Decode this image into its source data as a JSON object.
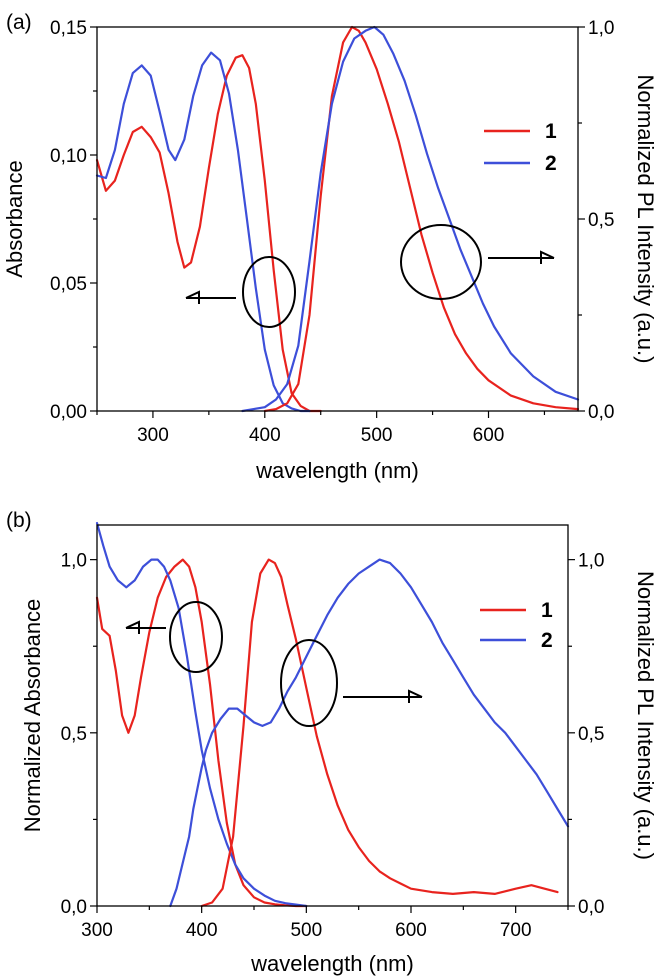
{
  "colors": {
    "series1": "#e8231e",
    "series2": "#3d4fd9",
    "axis": "#000000"
  },
  "chart_data": [
    {
      "panel_label": "(a)",
      "type": "line",
      "xlabel": "wavelength (nm)",
      "ylabel_left": "Absorbance",
      "ylabel_right": "Normalized PL Intensity (a.u.)",
      "xlim": [
        250,
        680
      ],
      "ylim_left": [
        0,
        0.15
      ],
      "ylim_right": [
        0,
        1.0
      ],
      "xticks": [
        300,
        400,
        500,
        600
      ],
      "xtick_labels": [
        "300",
        "400",
        "500",
        "600"
      ],
      "yticks_left": [
        0,
        0.05,
        0.1,
        0.15
      ],
      "ytick_labels_left": [
        "0,00",
        "0,05",
        "0,10",
        "0,15"
      ],
      "yticks_right": [
        0,
        0.5,
        1.0
      ],
      "ytick_labels_right": [
        "0,0",
        "0,5",
        "1,0"
      ],
      "legend": {
        "position": "right",
        "entries": [
          "1",
          "2"
        ]
      },
      "series": [
        {
          "name": "1",
          "kind": "absorbance",
          "axis": "left",
          "color_key": "series1",
          "x": [
            250,
            258,
            266,
            274,
            282,
            290,
            298,
            306,
            314,
            322,
            328,
            334,
            342,
            350,
            358,
            366,
            374,
            380,
            386,
            392,
            400,
            408,
            416,
            424,
            432,
            440,
            450
          ],
          "y": [
            0.098,
            0.086,
            0.09,
            0.1,
            0.109,
            0.111,
            0.107,
            0.101,
            0.085,
            0.066,
            0.056,
            0.058,
            0.072,
            0.095,
            0.116,
            0.131,
            0.138,
            0.139,
            0.134,
            0.12,
            0.09,
            0.055,
            0.024,
            0.007,
            0.002,
            0.0,
            0.0
          ]
        },
        {
          "name": "2",
          "kind": "absorbance",
          "axis": "left",
          "color_key": "series2",
          "x": [
            250,
            258,
            266,
            274,
            282,
            290,
            298,
            306,
            314,
            320,
            328,
            336,
            344,
            352,
            360,
            368,
            376,
            384,
            392,
            400,
            408,
            416,
            424,
            432,
            440
          ],
          "y": [
            0.092,
            0.091,
            0.102,
            0.12,
            0.132,
            0.135,
            0.131,
            0.117,
            0.102,
            0.098,
            0.106,
            0.123,
            0.135,
            0.14,
            0.137,
            0.124,
            0.102,
            0.075,
            0.048,
            0.024,
            0.01,
            0.003,
            0.001,
            0.0,
            0.0
          ]
        },
        {
          "name": "1",
          "kind": "emission",
          "axis": "right",
          "color_key": "series1",
          "x": [
            400,
            410,
            420,
            430,
            440,
            450,
            460,
            470,
            478,
            484,
            490,
            500,
            510,
            520,
            530,
            540,
            550,
            560,
            570,
            580,
            590,
            600,
            620,
            640,
            660,
            680
          ],
          "y": [
            0.0,
            0.005,
            0.02,
            0.07,
            0.25,
            0.56,
            0.82,
            0.96,
            1.0,
            0.99,
            0.96,
            0.89,
            0.8,
            0.7,
            0.58,
            0.46,
            0.36,
            0.27,
            0.2,
            0.15,
            0.11,
            0.08,
            0.04,
            0.02,
            0.01,
            0.005
          ]
        },
        {
          "name": "2",
          "kind": "emission",
          "axis": "right",
          "color_key": "series2",
          "x": [
            380,
            400,
            410,
            420,
            430,
            440,
            450,
            460,
            470,
            480,
            490,
            498,
            506,
            515,
            525,
            535,
            545,
            555,
            565,
            575,
            585,
            595,
            605,
            620,
            640,
            660,
            680
          ],
          "y": [
            0.0,
            0.01,
            0.03,
            0.07,
            0.17,
            0.39,
            0.62,
            0.8,
            0.91,
            0.97,
            0.99,
            1.0,
            0.98,
            0.93,
            0.86,
            0.77,
            0.67,
            0.58,
            0.5,
            0.42,
            0.35,
            0.28,
            0.22,
            0.15,
            0.09,
            0.05,
            0.03
          ]
        }
      ]
    },
    {
      "panel_label": "(b)",
      "type": "line",
      "xlabel": "wavelength (nm)",
      "ylabel_left": "Normalized Absorbance",
      "ylabel_right": "Normalized PL Intensity (a.u.)",
      "xlim": [
        300,
        750
      ],
      "ylim_left": [
        0,
        1.1
      ],
      "ylim_right": [
        0,
        1.1
      ],
      "xticks": [
        300,
        400,
        500,
        600,
        700
      ],
      "xtick_labels": [
        "300",
        "400",
        "500",
        "600",
        "700"
      ],
      "yticks_left": [
        0,
        0.5,
        1.0
      ],
      "ytick_labels_left": [
        "0,0",
        "0,5",
        "1,0"
      ],
      "yticks_right": [
        0,
        0.5,
        1.0
      ],
      "ytick_labels_right": [
        "0,0",
        "0,5",
        "1,0"
      ],
      "legend": {
        "position": "right",
        "entries": [
          "1",
          "2"
        ]
      },
      "series": [
        {
          "name": "1",
          "kind": "absorbance",
          "axis": "left",
          "color_key": "series1",
          "x": [
            300,
            305,
            312,
            318,
            324,
            330,
            336,
            342,
            350,
            358,
            366,
            374,
            382,
            388,
            394,
            400,
            408,
            416,
            424,
            432,
            440,
            450,
            460,
            470,
            480,
            490,
            500
          ],
          "y": [
            0.89,
            0.8,
            0.78,
            0.68,
            0.55,
            0.5,
            0.55,
            0.66,
            0.79,
            0.89,
            0.95,
            0.98,
            1.0,
            0.98,
            0.92,
            0.82,
            0.64,
            0.42,
            0.24,
            0.12,
            0.06,
            0.025,
            0.01,
            0.005,
            0.002,
            0.0,
            0.0
          ]
        },
        {
          "name": "2",
          "kind": "absorbance",
          "axis": "left",
          "color_key": "series2",
          "x": [
            300,
            306,
            312,
            320,
            328,
            336,
            344,
            352,
            358,
            364,
            370,
            378,
            386,
            394,
            400,
            408,
            416,
            424,
            432,
            440,
            450,
            460,
            470,
            480,
            490,
            500
          ],
          "y": [
            1.12,
            1.04,
            0.98,
            0.94,
            0.92,
            0.94,
            0.98,
            1.0,
            1.0,
            0.98,
            0.94,
            0.86,
            0.72,
            0.56,
            0.45,
            0.34,
            0.25,
            0.18,
            0.12,
            0.08,
            0.05,
            0.03,
            0.015,
            0.008,
            0.004,
            0.0
          ]
        },
        {
          "name": "1",
          "kind": "emission",
          "axis": "right",
          "color_key": "series1",
          "x": [
            400,
            410,
            420,
            430,
            440,
            448,
            456,
            464,
            470,
            476,
            482,
            490,
            500,
            510,
            520,
            530,
            540,
            550,
            560,
            570,
            580,
            590,
            600,
            620,
            640,
            660,
            680,
            700,
            715,
            740
          ],
          "y": [
            0.0,
            0.01,
            0.05,
            0.2,
            0.52,
            0.82,
            0.96,
            1.0,
            0.99,
            0.95,
            0.87,
            0.77,
            0.63,
            0.49,
            0.38,
            0.29,
            0.22,
            0.17,
            0.13,
            0.1,
            0.08,
            0.065,
            0.05,
            0.04,
            0.035,
            0.04,
            0.035,
            0.05,
            0.06,
            0.04
          ]
        },
        {
          "name": "2",
          "kind": "emission",
          "axis": "right",
          "color_key": "series2",
          "x": [
            370,
            376,
            380,
            384,
            388,
            392,
            396,
            400,
            404,
            410,
            418,
            426,
            434,
            442,
            450,
            458,
            466,
            474,
            482,
            490,
            500,
            510,
            520,
            530,
            540,
            550,
            560,
            570,
            580,
            590,
            600,
            610,
            620,
            630,
            640,
            650,
            660,
            670,
            680,
            690,
            700,
            710,
            720,
            730,
            740,
            750
          ],
          "y": [
            0.0,
            0.05,
            0.1,
            0.15,
            0.2,
            0.28,
            0.34,
            0.4,
            0.45,
            0.5,
            0.54,
            0.57,
            0.57,
            0.55,
            0.53,
            0.52,
            0.53,
            0.57,
            0.62,
            0.66,
            0.72,
            0.78,
            0.84,
            0.89,
            0.93,
            0.96,
            0.98,
            1.0,
            0.99,
            0.96,
            0.92,
            0.87,
            0.82,
            0.76,
            0.71,
            0.66,
            0.61,
            0.57,
            0.53,
            0.5,
            0.46,
            0.42,
            0.38,
            0.33,
            0.28,
            0.23
          ]
        }
      ]
    }
  ]
}
